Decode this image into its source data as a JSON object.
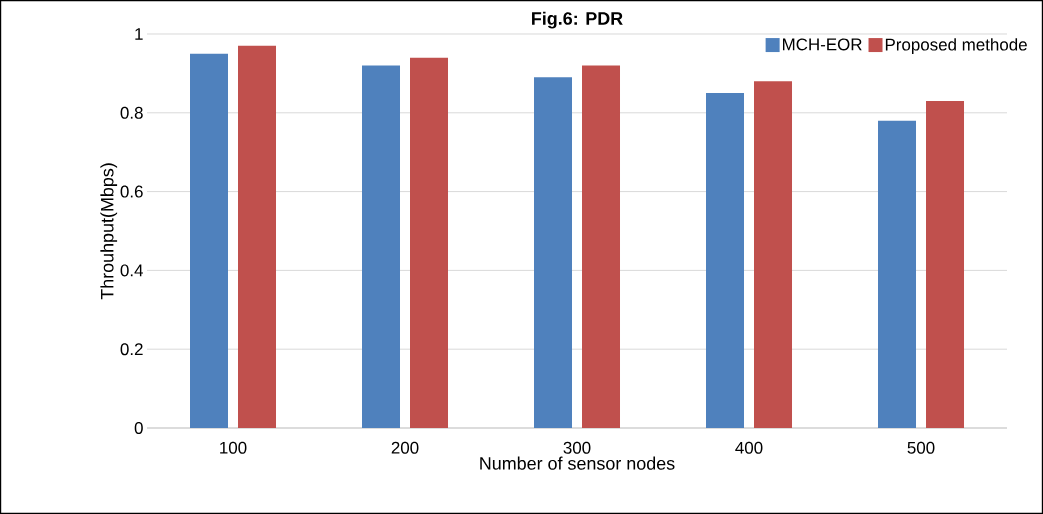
{
  "chart_data": {
    "type": "bar",
    "title": "Fig.6: PDR",
    "xlabel": "Number of sensor nodes",
    "ylabel": "Throuhput(Mbps)",
    "categories": [
      "100",
      "200",
      "300",
      "400",
      "500"
    ],
    "series": [
      {
        "name": "MCH-EOR",
        "color": "#4f81bd",
        "values": [
          0.95,
          0.92,
          0.89,
          0.85,
          0.78
        ]
      },
      {
        "name": "Proposed methode",
        "color": "#c0504d",
        "values": [
          0.97,
          0.94,
          0.92,
          0.88,
          0.83
        ]
      }
    ],
    "ylim": [
      0,
      1
    ],
    "yticks": [
      0,
      0.2,
      0.4,
      0.6,
      0.8,
      1
    ],
    "grid": "y",
    "legend": "top right"
  }
}
